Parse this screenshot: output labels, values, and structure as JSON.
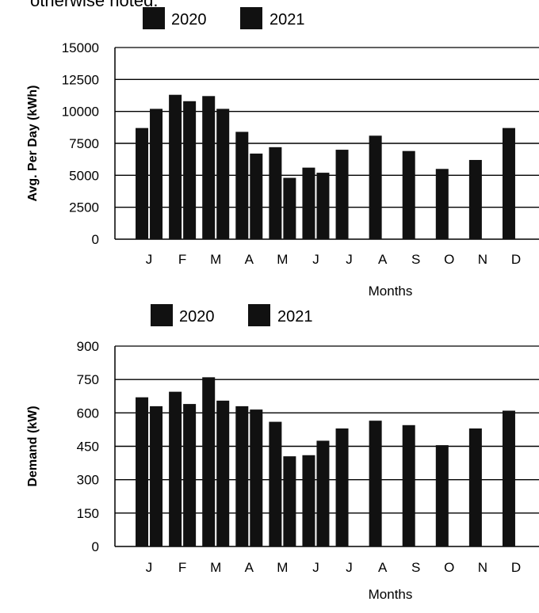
{
  "header_text": "otherwise noted.",
  "chart_data": [
    {
      "type": "bar",
      "categories": [
        "J",
        "F",
        "M",
        "A",
        "M",
        "J",
        "J",
        "A",
        "S",
        "O",
        "N",
        "D"
      ],
      "series": [
        {
          "name": "2020",
          "values": [
            8700,
            11300,
            11200,
            8400,
            7200,
            5600,
            7000,
            8100,
            6900,
            5500,
            6200,
            8700
          ]
        },
        {
          "name": "2021",
          "values": [
            10200,
            10800,
            10200,
            6700,
            4800,
            5200,
            null,
            null,
            null,
            null,
            null,
            null
          ]
        }
      ],
      "xlabel": "Months",
      "ylabel": "Avg. Per Day (kWh)",
      "yticks": [
        "0",
        "2500",
        "5000",
        "7500",
        "10000",
        "12500",
        "15000"
      ],
      "ylim": [
        0,
        15000
      ],
      "legend_position": "top",
      "grid": "horizontal",
      "color": "#111111"
    },
    {
      "type": "bar",
      "categories": [
        "J",
        "F",
        "M",
        "A",
        "M",
        "J",
        "J",
        "A",
        "S",
        "O",
        "N",
        "D"
      ],
      "series": [
        {
          "name": "2020",
          "values": [
            670,
            695,
            760,
            630,
            560,
            410,
            530,
            565,
            545,
            455,
            530,
            610
          ]
        },
        {
          "name": "2021",
          "values": [
            630,
            640,
            655,
            615,
            405,
            475,
            null,
            null,
            null,
            null,
            null,
            null
          ]
        }
      ],
      "xlabel": "Months",
      "ylabel": "Demand (kW)",
      "yticks": [
        "0",
        "150",
        "300",
        "450",
        "600",
        "750",
        "900"
      ],
      "ylim": [
        0,
        900
      ],
      "legend_position": "top",
      "grid": "horizontal",
      "color": "#111111"
    }
  ]
}
